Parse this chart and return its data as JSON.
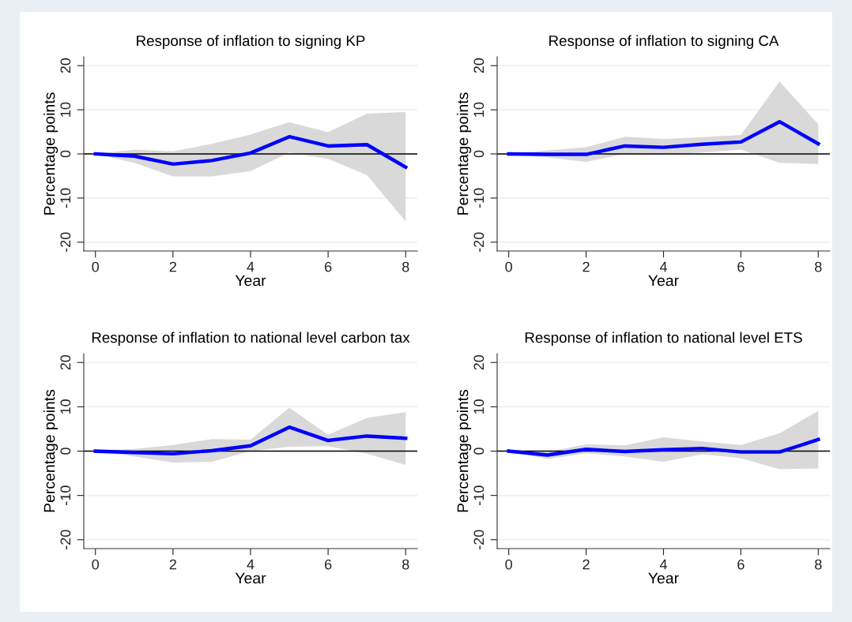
{
  "chart_data": [
    {
      "type": "line",
      "title": "Response of inflation to signing KP",
      "xlabel": "Year",
      "ylabel": "Percentage points",
      "x": [
        0,
        1,
        2,
        3,
        4,
        5,
        6,
        7,
        8
      ],
      "xlim": [
        -0.3,
        8.3
      ],
      "xticks": [
        0,
        2,
        4,
        6,
        8
      ],
      "ylim": [
        -22,
        22
      ],
      "yticks": [
        -20,
        -10,
        0,
        10,
        20
      ],
      "grid": "y",
      "legend": false,
      "ref_lines": [
        {
          "axis": "y",
          "value": 0,
          "color": "#000000"
        }
      ],
      "series": [
        {
          "color": "#0000ff",
          "values": [
            0,
            -0.5,
            -2.3,
            -1.5,
            0.2,
            3.9,
            1.8,
            2.1,
            -3.0
          ],
          "lower": [
            0,
            -2.0,
            -5.1,
            -5.1,
            -3.9,
            0.3,
            -1.1,
            -4.8,
            -15.3
          ],
          "upper": [
            0,
            1.0,
            0.6,
            2.3,
            4.4,
            7.2,
            4.9,
            9.1,
            9.5
          ]
        }
      ]
    },
    {
      "type": "line",
      "title": "Response of inflation to signing CA",
      "xlabel": "Year",
      "ylabel": "Percentage points",
      "x": [
        0,
        1,
        2,
        3,
        4,
        5,
        6,
        7,
        8
      ],
      "xlim": [
        -0.3,
        8.3
      ],
      "xticks": [
        0,
        2,
        4,
        6,
        8
      ],
      "ylim": [
        -22,
        22
      ],
      "yticks": [
        -20,
        -10,
        0,
        10,
        20
      ],
      "grid": "y",
      "legend": false,
      "ref_lines": [
        {
          "axis": "y",
          "value": 0,
          "color": "#000000"
        }
      ],
      "series": [
        {
          "color": "#0000ff",
          "values": [
            0,
            -0.1,
            -0.1,
            1.8,
            1.5,
            2.2,
            2.7,
            7.3,
            2.3
          ],
          "lower": [
            0,
            -0.8,
            -1.8,
            0,
            -0.1,
            0.3,
            1.0,
            -2.0,
            -2.3
          ],
          "upper": [
            0,
            0.8,
            1.5,
            3.9,
            3.4,
            3.8,
            4.3,
            16.4,
            6.7
          ]
        }
      ]
    },
    {
      "type": "line",
      "title": "Response of inflation to national level carbon tax",
      "xlabel": "Year",
      "ylabel": "Percentage points",
      "x": [
        0,
        1,
        2,
        3,
        4,
        5,
        6,
        7,
        8
      ],
      "xlim": [
        -0.3,
        8.3
      ],
      "xticks": [
        0,
        2,
        4,
        6,
        8
      ],
      "ylim": [
        -22,
        22
      ],
      "yticks": [
        -20,
        -10,
        0,
        10,
        20
      ],
      "grid": "y",
      "legend": false,
      "ref_lines": [
        {
          "axis": "y",
          "value": 0,
          "color": "#000000"
        }
      ],
      "series": [
        {
          "color": "#0000ff",
          "values": [
            0,
            -0.3,
            -0.6,
            0.1,
            1.2,
            5.4,
            2.4,
            3.4,
            2.9
          ],
          "lower": [
            0,
            -1.2,
            -2.6,
            -2.4,
            0,
            1.0,
            1.1,
            -0.6,
            -3.1
          ],
          "upper": [
            0,
            0.5,
            1.4,
            2.7,
            2.6,
            9.8,
            3.7,
            7.5,
            8.8
          ]
        }
      ]
    },
    {
      "type": "line",
      "title": "Response of inflation to national level ETS",
      "xlabel": "Year",
      "ylabel": "Percentage points",
      "x": [
        0,
        1,
        2,
        3,
        4,
        5,
        6,
        7,
        8
      ],
      "xlim": [
        -0.3,
        8.3
      ],
      "xticks": [
        0,
        2,
        4,
        6,
        8
      ],
      "ylim": [
        -22,
        22
      ],
      "yticks": [
        -20,
        -10,
        0,
        10,
        20
      ],
      "grid": "y",
      "legend": false,
      "ref_lines": [
        {
          "axis": "y",
          "value": 0,
          "color": "#000000"
        }
      ],
      "series": [
        {
          "color": "#0000ff",
          "values": [
            0,
            -0.9,
            0.4,
            -0.1,
            0.3,
            0.6,
            -0.2,
            -0.2,
            2.6
          ],
          "lower": [
            0,
            -1.8,
            -0.5,
            -1.2,
            -2.4,
            -0.7,
            -1.6,
            -4.1,
            -3.9
          ],
          "upper": [
            0,
            -0.2,
            1.5,
            1.3,
            3.1,
            2.2,
            1.4,
            4.0,
            9.1
          ]
        }
      ]
    }
  ]
}
